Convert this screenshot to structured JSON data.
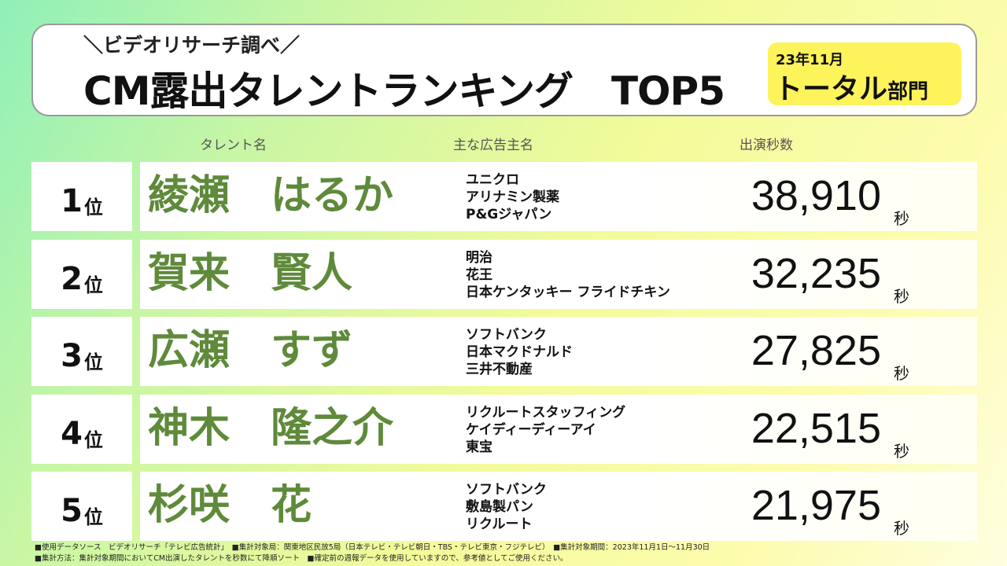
{
  "header": {
    "subtitle": "＼ビデオリサーチ調べ／",
    "title": "CM露出タレントランキング　TOP5",
    "badge_date": "23年11月",
    "badge_label_main": "トータル",
    "badge_label_small": "部門"
  },
  "columns": {
    "name": "タレント名",
    "sponsor": "主な広告主名",
    "seconds": "出演秒数"
  },
  "rank_suffix": "位",
  "seconds_unit": "秒",
  "rows": [
    {
      "rank": "1",
      "name": "綾瀬　はるか",
      "sponsors": [
        "ユニクロ",
        "アリナミン製薬",
        "P&Gジャパン"
      ],
      "seconds": "38,910"
    },
    {
      "rank": "2",
      "name": "賀来　賢人",
      "sponsors": [
        "明治",
        "花王",
        "日本ケンタッキー フライドチキン"
      ],
      "seconds": "32,235"
    },
    {
      "rank": "3",
      "name": "広瀬　すず",
      "sponsors": [
        "ソフトバンク",
        "日本マクドナルド",
        "三井不動産"
      ],
      "seconds": "27,825"
    },
    {
      "rank": "4",
      "name": "神木　隆之介",
      "sponsors": [
        "リクルートスタッフィング",
        "ケイディーディーアイ",
        "東宝"
      ],
      "seconds": "22,515"
    },
    {
      "rank": "5",
      "name": "杉咲　花",
      "sponsors": [
        "ソフトバンク",
        "敷島製パン",
        "リクルート"
      ],
      "seconds": "21,975"
    }
  ],
  "footer": {
    "line1": "■使用データソース　ビデオリサーチ「テレビ広告統計」　■集計対象局：関東地区民放5局（日本テレビ・テレビ朝日・TBS・テレビ東京・フジテレビ）　■集計対象期間：2023年11月1日～11月30日",
    "line2": "■集計方法：集計対象期間においてCM出演したタレントを秒数にて降順ソート　■確定前の週報データを使用していますので、参考値としてご使用ください。"
  },
  "colors": {
    "name_green": "#5e8a3a",
    "badge_yellow": "#fdf35a"
  }
}
